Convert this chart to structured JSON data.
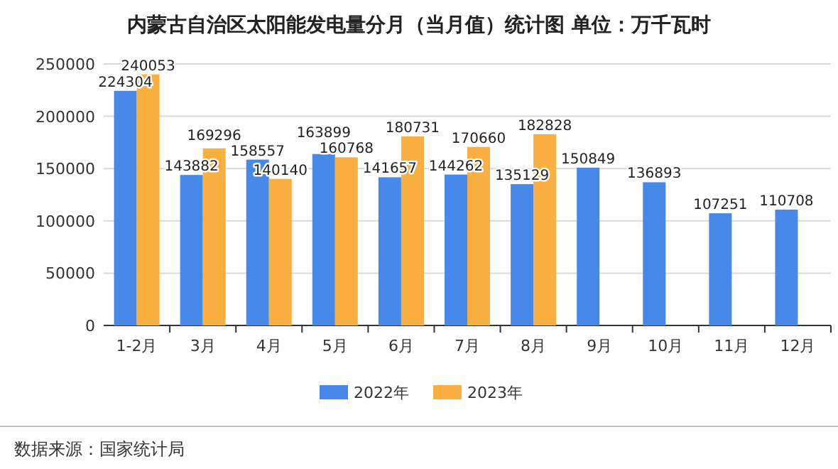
{
  "chart_data": {
    "type": "bar",
    "title": "内蒙古自治区太阳能发电量分月（当月值）统计图 单位：万千瓦时",
    "categories": [
      "1-2月",
      "3月",
      "4月",
      "5月",
      "6月",
      "7月",
      "8月",
      "9月",
      "10月",
      "11月",
      "12月"
    ],
    "series": [
      {
        "name": "2022年",
        "color": "#4689e8",
        "values": [
          224304,
          143882,
          158557,
          163899,
          141657,
          144262,
          135129,
          150849,
          136893,
          107251,
          110708
        ]
      },
      {
        "name": "2023年",
        "color": "#f9b040",
        "values": [
          240053,
          169296,
          140140,
          160768,
          180731,
          170660,
          182828,
          null,
          null,
          null,
          null
        ]
      }
    ],
    "ylim": [
      0,
      250000
    ],
    "yticks": [
      0,
      50000,
      100000,
      150000,
      200000,
      250000
    ],
    "grid": "y",
    "legend": "bottom",
    "data_labels": true,
    "annotations": [
      "数据来源：国家统计局"
    ]
  }
}
